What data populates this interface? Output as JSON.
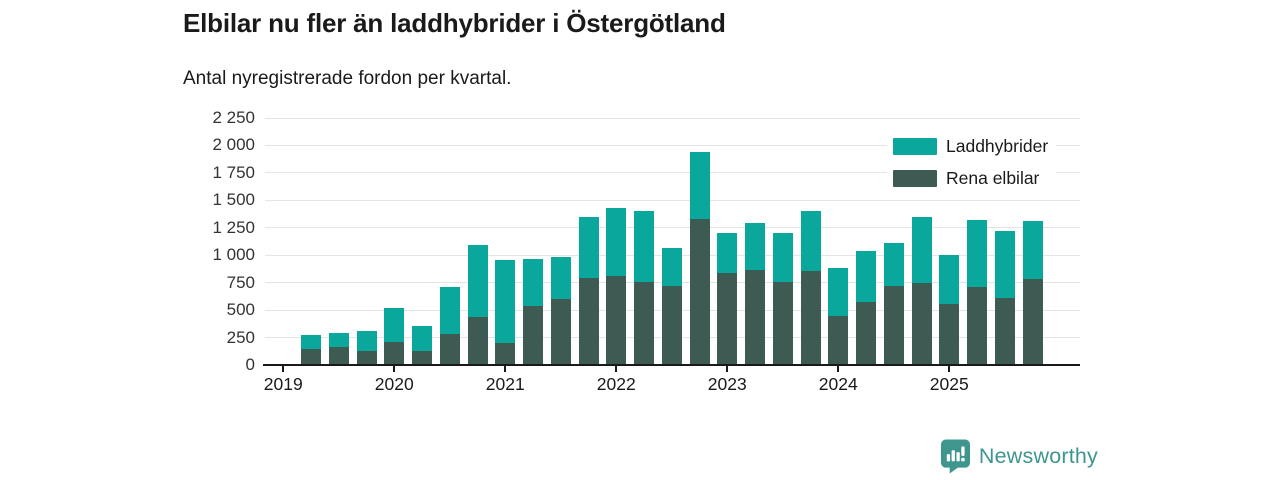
{
  "header": {
    "title": "Elbilar nu fler än laddhybrider i Östergötland",
    "subtitle": "Antal nyregistrerade fordon per kvartal."
  },
  "footer": {
    "brand": "Newsworthy"
  },
  "colors": {
    "laddhybrider": "#0aa79c",
    "rena_elbilar": "#3d5b53",
    "axis": "#1a1a1a",
    "gridline": "#e4e4e4",
    "brand_teal": "#3f968f"
  },
  "chart_data": {
    "type": "bar",
    "stacked": true,
    "title": "Elbilar nu fler än laddhybrider i Östergötland",
    "subtitle": "Antal nyregistrerade fordon per kvartal.",
    "xlabel": "",
    "ylabel": "",
    "ylim": [
      0,
      2250
    ],
    "grid": true,
    "legend_position": "top-right",
    "x": [
      "2019 Q2",
      "2019 Q3",
      "2019 Q4",
      "2020 Q1",
      "2020 Q2",
      "2020 Q3",
      "2020 Q4",
      "2021 Q1",
      "2021 Q2",
      "2021 Q3",
      "2021 Q4",
      "2022 Q1",
      "2022 Q2",
      "2022 Q3",
      "2022 Q4",
      "2023 Q1",
      "2023 Q2",
      "2023 Q3",
      "2023 Q4",
      "2024 Q1",
      "2024 Q2",
      "2024 Q3",
      "2024 Q4",
      "2025 Q1",
      "2025 Q2",
      "2025 Q3",
      "2025 Q4"
    ],
    "series": [
      {
        "name": "Laddhybrider",
        "color": "#0aa79c",
        "values": [
          130,
          125,
          180,
          305,
          225,
          435,
          660,
          760,
          430,
          380,
          555,
          620,
          640,
          345,
          610,
          365,
          420,
          440,
          540,
          435,
          465,
          395,
          600,
          450,
          605,
          615,
          530
        ]
      },
      {
        "name": "Rena elbilar",
        "color": "#3d5b53",
        "values": [
          145,
          165,
          130,
          210,
          130,
          280,
          435,
          200,
          540,
          600,
          790,
          810,
          760,
          720,
          1330,
          840,
          870,
          760,
          860,
          445,
          575,
          720,
          750,
          555,
          715,
          610,
          780
        ]
      }
    ],
    "stack_bottom_to_top": [
      "Rena elbilar",
      "Laddhybrider"
    ],
    "y_ticks": [
      0,
      250,
      500,
      750,
      1000,
      1250,
      1500,
      1750,
      2000,
      2250
    ],
    "y_tick_labels": [
      "0",
      "250",
      "500",
      "750",
      "1 000",
      "1 250",
      "1 500",
      "1 750",
      "2 000",
      "2 250"
    ],
    "x_year_labels": [
      "2019",
      "2020",
      "2021",
      "2022",
      "2023",
      "2024",
      "2025"
    ]
  }
}
